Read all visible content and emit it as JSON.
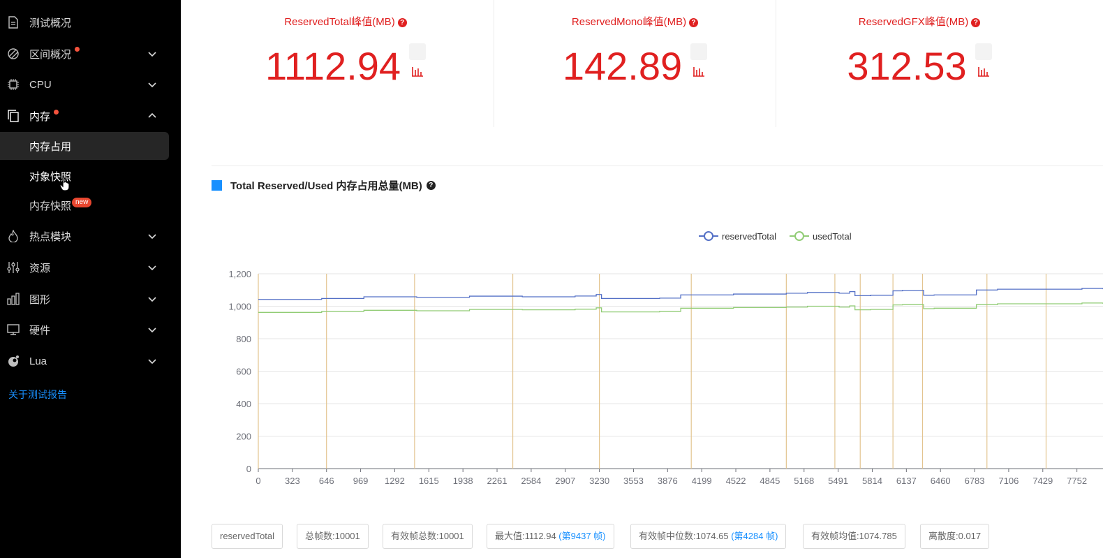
{
  "sidebar": {
    "items": [
      {
        "label": "测试概况",
        "icon": "document-icon"
      },
      {
        "label": "区间概况",
        "icon": "interval-icon"
      },
      {
        "label": "CPU",
        "icon": "cpu-icon"
      },
      {
        "label": "内存",
        "icon": "memory-icon"
      },
      {
        "label": "热点模块",
        "icon": "flame-icon"
      },
      {
        "label": "资源",
        "icon": "sliders-icon"
      },
      {
        "label": "图形",
        "icon": "bar-chart-icon"
      },
      {
        "label": "硬件",
        "icon": "monitor-icon"
      },
      {
        "label": "Lua",
        "icon": "lua-icon"
      }
    ],
    "memory_sub": [
      {
        "label": "内存占用"
      },
      {
        "label": "对象快照"
      },
      {
        "label": "内存快照"
      }
    ],
    "new_badge": "new",
    "about_link": "关于测试报告"
  },
  "stats": [
    {
      "title": "ReservedTotal峰值(MB)",
      "value": "1112.94"
    },
    {
      "title": "ReservedMono峰值(MB)",
      "value": "142.89"
    },
    {
      "title": "ReservedGFX峰值(MB)",
      "value": "312.53"
    }
  ],
  "chart_section": {
    "title": "Total Reserved/Used 内存占用总量(MB)"
  },
  "chart_data": {
    "type": "line",
    "title": "Total Reserved/Used 内存占用总量(MB)",
    "legend": [
      "reservedTotal",
      "usedTotal"
    ],
    "x_ticks": [
      "0",
      "323",
      "646",
      "969",
      "1292",
      "1615",
      "1938",
      "2261",
      "2584",
      "2907",
      "3230",
      "3553",
      "3876",
      "4199",
      "4522",
      "4845",
      "5168",
      "5491",
      "5814",
      "6137",
      "6460",
      "6783",
      "7106",
      "7429",
      "7752"
    ],
    "y_ticks": [
      "0",
      "200",
      "400",
      "600",
      "800",
      "1,000",
      "1,200"
    ],
    "ylim": [
      0,
      1200
    ],
    "xlim": [
      0,
      7999
    ],
    "markers": [
      0,
      646,
      1480,
      2410,
      3230,
      4100,
      5000,
      5460,
      5700,
      6010,
      6290,
      6900,
      7460
    ],
    "series": [
      {
        "name": "reservedTotal",
        "color": "#5470c6",
        "x": [
          0,
          600,
          1000,
          1500,
          2000,
          2500,
          3000,
          3200,
          3250,
          3800,
          4000,
          4500,
          5000,
          5200,
          5500,
          5600,
          5650,
          5800,
          6010,
          6100,
          6300,
          6400,
          6800,
          7000,
          7460,
          7800,
          7999
        ],
        "values": [
          1042,
          1048,
          1058,
          1055,
          1062,
          1058,
          1063,
          1072,
          1048,
          1050,
          1070,
          1075,
          1080,
          1085,
          1080,
          1090,
          1065,
          1068,
          1095,
          1098,
          1068,
          1070,
          1100,
          1105,
          1105,
          1110,
          1105
        ]
      },
      {
        "name": "usedTotal",
        "color": "#91cc75",
        "x": [
          0,
          600,
          1000,
          1500,
          2000,
          2500,
          3000,
          3200,
          3250,
          3800,
          4000,
          4500,
          5000,
          5200,
          5500,
          5600,
          5650,
          5800,
          6010,
          6100,
          6300,
          6400,
          6800,
          7000,
          7460,
          7800,
          7999
        ],
        "values": [
          962,
          968,
          975,
          972,
          980,
          978,
          982,
          990,
          965,
          968,
          988,
          992,
          995,
          1000,
          995,
          1002,
          978,
          980,
          1008,
          1010,
          985,
          988,
          1010,
          1015,
          1015,
          1020,
          1015
        ]
      }
    ]
  },
  "stats_tags": [
    {
      "text": "reservedTotal"
    },
    {
      "text": "总帧数:10001"
    },
    {
      "text": "有效帧总数:10001"
    },
    {
      "text": "最大值:1112.94 ",
      "link": "(第9437 帧)"
    },
    {
      "text": "有效帧中位数:1074.65 ",
      "link": "(第4284 帧)"
    },
    {
      "text": "有效帧均值:1074.785"
    },
    {
      "text": "离散度:0.017"
    }
  ],
  "colors": {
    "accent": "#1890ff",
    "peak_red": "#e02020",
    "reserved": "#5470c6",
    "used": "#91cc75",
    "marker": "#e3c48f"
  }
}
